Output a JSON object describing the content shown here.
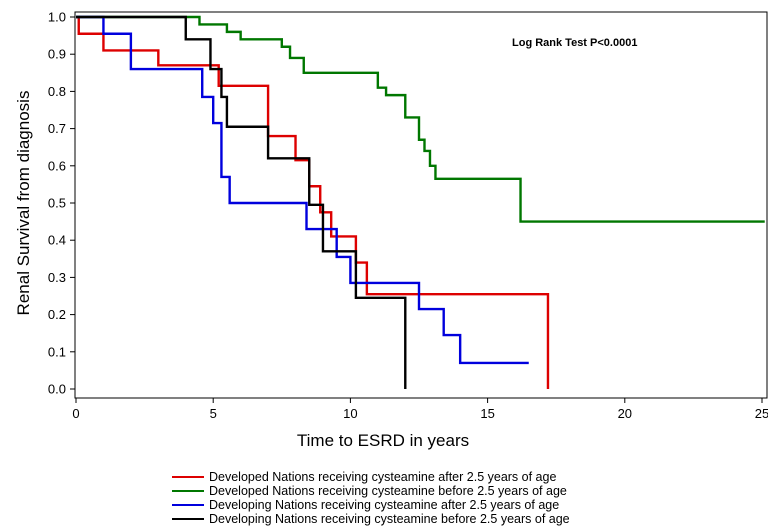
{
  "chart_data": {
    "type": "line",
    "subtype": "kaplan-meier-step",
    "title": "",
    "xlabel": "Time to ESRD in years",
    "ylabel": "Renal Survival from diagnosis",
    "xlim": [
      0,
      25
    ],
    "ylim": [
      0,
      1.0
    ],
    "xticks": [
      0,
      5,
      10,
      15,
      20,
      25
    ],
    "yticks": [
      "0.0",
      "0.1",
      "0.2",
      "0.3",
      "0.4",
      "0.5",
      "0.6",
      "0.7",
      "0.8",
      "0.9",
      "1.0"
    ],
    "grid": false,
    "legend_position": "bottom",
    "annotation": "Log Rank Test P<0.0001",
    "series": [
      {
        "name": "Developed Nations receiving cysteamine after 2.5 years of age",
        "color": "#dd0000",
        "x": [
          0,
          0.1,
          1,
          3,
          5.2,
          7,
          8,
          8.5,
          8.9,
          9.3,
          10.2,
          10.6,
          17.2,
          17.2
        ],
        "y": [
          1.0,
          0.955,
          0.91,
          0.87,
          0.815,
          0.68,
          0.615,
          0.545,
          0.475,
          0.41,
          0.34,
          0.255,
          0.255,
          0.0
        ]
      },
      {
        "name": "Developed Nations receiving cysteamine before 2.5 years of age",
        "color": "#007700",
        "x": [
          0,
          4.5,
          5.5,
          6,
          6.3,
          7.5,
          7.8,
          8.3,
          11,
          11.3,
          12,
          12.5,
          12.7,
          12.9,
          13.1,
          16.2,
          25.1
        ],
        "y": [
          1.0,
          0.98,
          0.96,
          0.94,
          0.94,
          0.92,
          0.89,
          0.85,
          0.81,
          0.79,
          0.73,
          0.67,
          0.64,
          0.6,
          0.565,
          0.45,
          0.45
        ]
      },
      {
        "name": "Developing Nations receiving cysteamine after 2.5 years of age",
        "color": "#0000dd",
        "x": [
          0,
          1,
          2,
          4.6,
          5,
          5.3,
          5.6,
          8.4,
          9.5,
          10.7,
          12.5,
          13.4,
          14,
          16.5
        ],
        "y": [
          1.0,
          0.955,
          0.86,
          0.785,
          0.715,
          0.57,
          0.5,
          0.43,
          0.355,
          0.285,
          0.215,
          0.145,
          0.07,
          0.07
        ],
        "extra_steps": [
          [
            10,
            0.285
          ]
        ]
      },
      {
        "name": "Developing Nations receiving cysteamine before 2.5 years of age",
        "color": "#000000",
        "x": [
          0,
          4,
          4.9,
          5.5,
          7,
          8.5,
          9,
          10.2,
          12,
          12
        ],
        "y": [
          1.0,
          0.94,
          0.86,
          0.705,
          0.62,
          0.495,
          0.37,
          0.245,
          0.245,
          0.0
        ],
        "extra_steps": [
          [
            5.3,
            0.785
          ]
        ]
      }
    ]
  }
}
